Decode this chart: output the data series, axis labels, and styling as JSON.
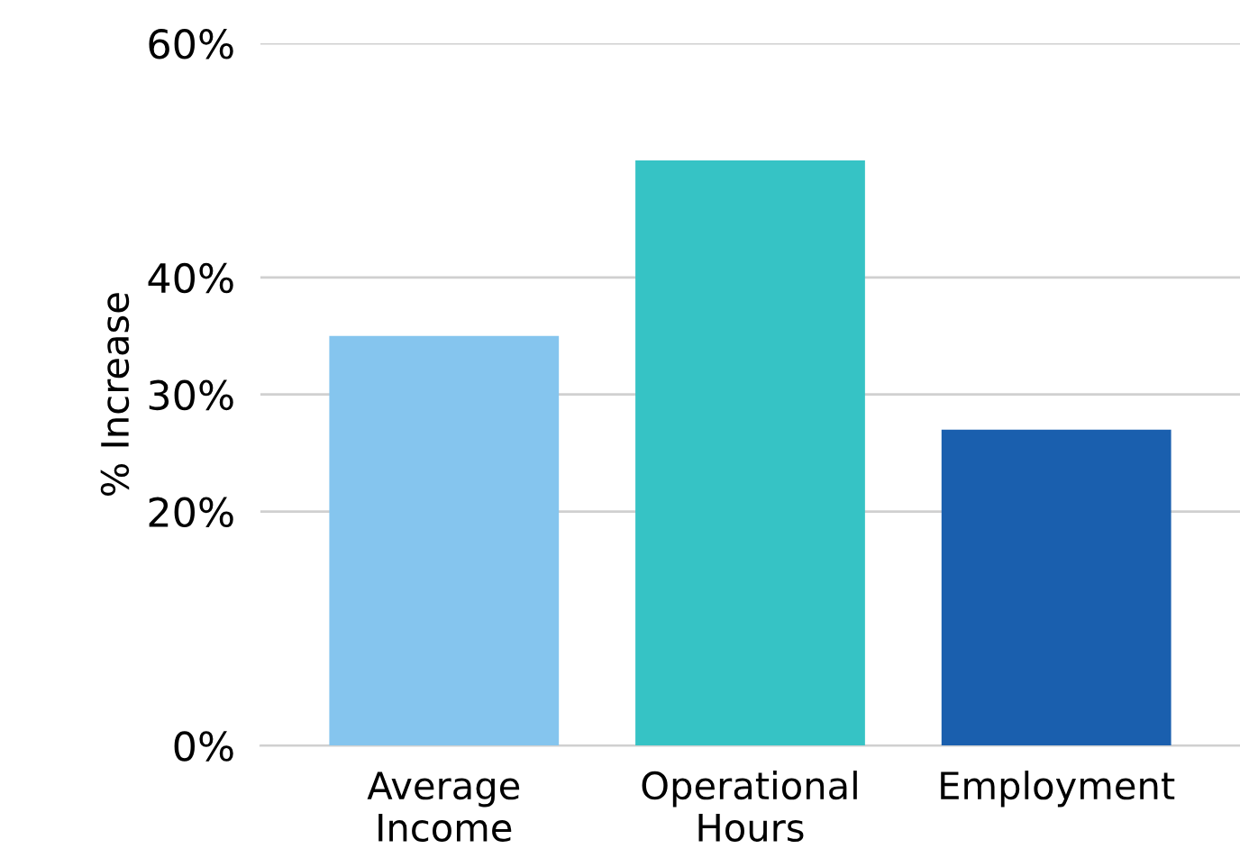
{
  "chart_data": {
    "type": "bar",
    "ylabel": "% Increase",
    "categories": [
      "Average\nIncome",
      "Operational\nHours",
      "Employment"
    ],
    "values": [
      35,
      50,
      27
    ],
    "colors": [
      "#85c5ee",
      "#36c3c5",
      "#1a5fae"
    ],
    "ylim": [
      0,
      60
    ],
    "yticks": [
      {
        "value": 0,
        "label": "0%"
      },
      {
        "value": 20,
        "label": "20%"
      },
      {
        "value": 30,
        "label": "30%"
      },
      {
        "value": 40,
        "label": "40%"
      },
      {
        "value": 60,
        "label": "60%"
      }
    ],
    "grid": "y"
  }
}
